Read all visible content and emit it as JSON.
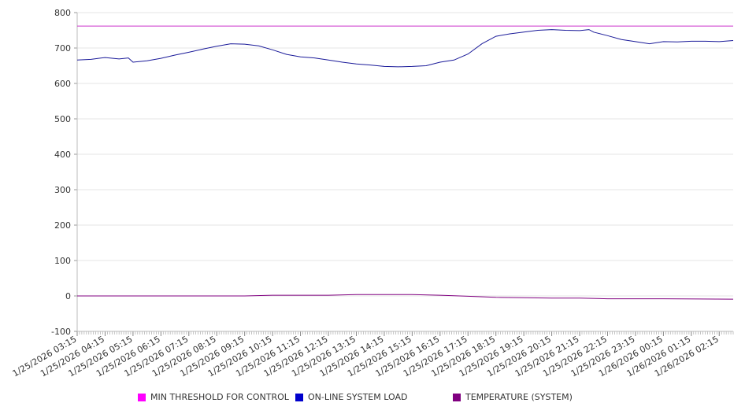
{
  "chart_data": {
    "type": "line",
    "ylim": [
      -100,
      800
    ],
    "yticks": [
      -100,
      0,
      100,
      200,
      300,
      400,
      500,
      600,
      700,
      800
    ],
    "xstart": "1/25/2026 03:15",
    "xend": "1/26/2026 02:45",
    "x_tick_labels": [
      "1/25/2026 03:15",
      "1/25/2026 04:15",
      "1/25/2026 05:15",
      "1/25/2026 06:15",
      "1/25/2026 07:15",
      "1/25/2026 08:15",
      "1/25/2026 09:15",
      "1/25/2026 10:15",
      "1/25/2026 11:15",
      "1/25/2026 12:15",
      "1/25/2026 13:15",
      "1/25/2026 14:15",
      "1/25/2026 15:15",
      "1/25/2026 16:15",
      "1/25/2026 17:15",
      "1/25/2026 18:15",
      "1/25/2026 19:15",
      "1/25/2026 20:15",
      "1/25/2026 21:15",
      "1/25/2026 22:15",
      "1/25/2026 23:15",
      "1/26/2026 00:15",
      "1/26/2026 01:15",
      "1/26/2026 02:15"
    ],
    "grid": true,
    "legend_position": "bottom",
    "series": [
      {
        "name": "MIN THRESHOLD FOR CONTROL",
        "color": "#cc33cc",
        "points": [
          [
            "1/25/2026 03:15",
            762
          ],
          [
            "1/26/2026 02:45",
            762
          ]
        ]
      },
      {
        "name": "ON-LINE SYSTEM LOAD",
        "color": "#1a1a99",
        "points": [
          [
            "1/25/2026 03:15",
            666
          ],
          [
            "1/25/2026 03:45",
            668
          ],
          [
            "1/25/2026 04:15",
            673
          ],
          [
            "1/25/2026 04:45",
            669
          ],
          [
            "1/25/2026 05:05",
            672
          ],
          [
            "1/25/2026 05:15",
            660
          ],
          [
            "1/25/2026 05:45",
            664
          ],
          [
            "1/25/2026 06:15",
            671
          ],
          [
            "1/25/2026 06:45",
            680
          ],
          [
            "1/25/2026 07:15",
            688
          ],
          [
            "1/25/2026 07:45",
            697
          ],
          [
            "1/25/2026 08:15",
            705
          ],
          [
            "1/25/2026 08:45",
            712
          ],
          [
            "1/25/2026 09:15",
            711
          ],
          [
            "1/25/2026 09:45",
            706
          ],
          [
            "1/25/2026 10:15",
            695
          ],
          [
            "1/25/2026 10:45",
            682
          ],
          [
            "1/25/2026 11:15",
            675
          ],
          [
            "1/25/2026 11:45",
            672
          ],
          [
            "1/25/2026 12:15",
            666
          ],
          [
            "1/25/2026 12:45",
            660
          ],
          [
            "1/25/2026 13:15",
            655
          ],
          [
            "1/25/2026 13:45",
            652
          ],
          [
            "1/25/2026 14:15",
            648
          ],
          [
            "1/25/2026 14:45",
            647
          ],
          [
            "1/25/2026 15:15",
            648
          ],
          [
            "1/25/2026 15:45",
            650
          ],
          [
            "1/25/2026 16:15",
            660
          ],
          [
            "1/25/2026 16:45",
            666
          ],
          [
            "1/25/2026 17:15",
            683
          ],
          [
            "1/25/2026 17:45",
            712
          ],
          [
            "1/25/2026 18:15",
            733
          ],
          [
            "1/25/2026 18:45",
            740
          ],
          [
            "1/25/2026 19:15",
            745
          ],
          [
            "1/25/2026 19:45",
            750
          ],
          [
            "1/25/2026 20:15",
            752
          ],
          [
            "1/25/2026 20:45",
            750
          ],
          [
            "1/25/2026 21:15",
            749
          ],
          [
            "1/25/2026 21:35",
            752
          ],
          [
            "1/25/2026 21:45",
            745
          ],
          [
            "1/25/2026 22:15",
            735
          ],
          [
            "1/25/2026 22:45",
            724
          ],
          [
            "1/25/2026 23:15",
            718
          ],
          [
            "1/25/2026 23:45",
            712
          ],
          [
            "1/26/2026 00:15",
            718
          ],
          [
            "1/26/2026 00:45",
            717
          ],
          [
            "1/26/2026 01:15",
            719
          ],
          [
            "1/26/2026 01:45",
            719
          ],
          [
            "1/26/2026 02:15",
            718
          ],
          [
            "1/26/2026 02:45",
            721
          ]
        ]
      },
      {
        "name": "TEMPERATURE (SYSTEM)",
        "color": "#800080",
        "points": [
          [
            "1/25/2026 03:15",
            0
          ],
          [
            "1/25/2026 05:15",
            0
          ],
          [
            "1/25/2026 09:15",
            0
          ],
          [
            "1/25/2026 10:15",
            2
          ],
          [
            "1/25/2026 12:15",
            2
          ],
          [
            "1/25/2026 13:15",
            4
          ],
          [
            "1/25/2026 15:15",
            4
          ],
          [
            "1/25/2026 16:15",
            2
          ],
          [
            "1/25/2026 17:15",
            -1
          ],
          [
            "1/25/2026 18:15",
            -4
          ],
          [
            "1/25/2026 19:15",
            -5
          ],
          [
            "1/25/2026 20:15",
            -6
          ],
          [
            "1/25/2026 21:15",
            -6
          ],
          [
            "1/25/2026 22:15",
            -8
          ],
          [
            "1/26/2026 00:15",
            -8
          ],
          [
            "1/26/2026 02:45",
            -9
          ]
        ]
      }
    ]
  }
}
